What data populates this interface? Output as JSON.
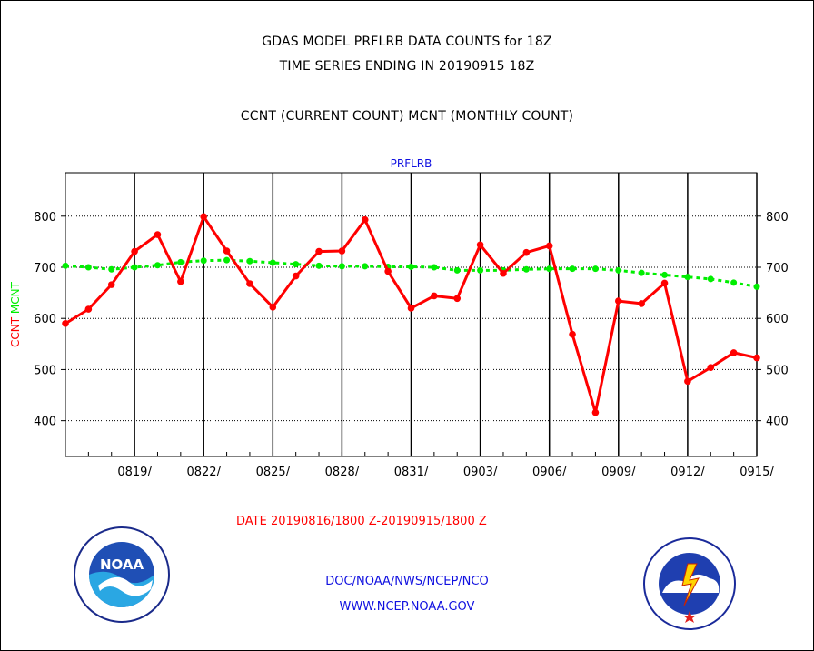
{
  "header": {
    "line1": "GDAS MODEL PRFLRB DATA COUNTS for 18Z",
    "line2": "TIME SERIES ENDING IN 20190915 18Z",
    "line3": "CCNT (CURRENT COUNT) MCNT (MONTHLY COUNT)"
  },
  "footer": {
    "date_range": "DATE 20190816/1800 Z-20190915/1800 Z",
    "org": "DOC/NOAA/NWS/NCEP/NCO",
    "url": "WWW.NCEP.NOAA.GOV"
  },
  "logos": {
    "left": "NOAA",
    "right": "NATIONAL WEATHER SERVICE"
  },
  "colors": {
    "ccnt": "#ff0000",
    "mcnt": "#00ee00",
    "text_blue": "#1010e0"
  },
  "chart_data": {
    "type": "line",
    "title": "PRFLRB",
    "ylabel_ccnt": "CCNT",
    "ylabel_mcnt": "MCNT",
    "ylim": [
      330,
      885
    ],
    "yticks": [
      400,
      500,
      600,
      700,
      800
    ],
    "xticks": [
      "0819/",
      "0822/",
      "0825/",
      "0828/",
      "0831/",
      "0903/",
      "0906/",
      "0909/",
      "0912/",
      "0915/"
    ],
    "grid": true,
    "series": [
      {
        "name": "CCNT",
        "x": [
          "0816",
          "0817",
          "0818",
          "0819",
          "0820",
          "0821",
          "0822",
          "0823",
          "0824",
          "0825",
          "0826",
          "0827",
          "0828",
          "0829",
          "0830",
          "0831",
          "0901",
          "0902",
          "0903",
          "0904",
          "0905",
          "0906",
          "0907",
          "0908",
          "0909",
          "0910",
          "0911",
          "0912",
          "0913",
          "0914",
          "0915"
        ],
        "values": [
          590,
          618,
          666,
          731,
          764,
          672,
          799,
          732,
          668,
          622,
          683,
          731,
          732,
          793,
          692,
          620,
          644,
          639,
          744,
          688,
          729,
          742,
          569,
          416,
          634,
          629,
          669,
          477,
          504,
          533,
          523
        ]
      },
      {
        "name": "MCNT",
        "x": [
          "0816",
          "0817",
          "0818",
          "0819",
          "0820",
          "0821",
          "0822",
          "0823",
          "0824",
          "0825",
          "0826",
          "0827",
          "0828",
          "0829",
          "0830",
          "0831",
          "0901",
          "0902",
          "0903",
          "0904",
          "0905",
          "0906",
          "0907",
          "0908",
          "0909",
          "0910",
          "0911",
          "0912",
          "0913",
          "0914",
          "0915"
        ],
        "values": [
          703,
          700,
          696,
          700,
          704,
          710,
          713,
          714,
          712,
          709,
          706,
          703,
          702,
          702,
          701,
          701,
          700,
          694,
          694,
          694,
          696,
          697,
          697,
          697,
          694,
          689,
          685,
          681,
          677,
          670,
          662
        ]
      }
    ]
  }
}
